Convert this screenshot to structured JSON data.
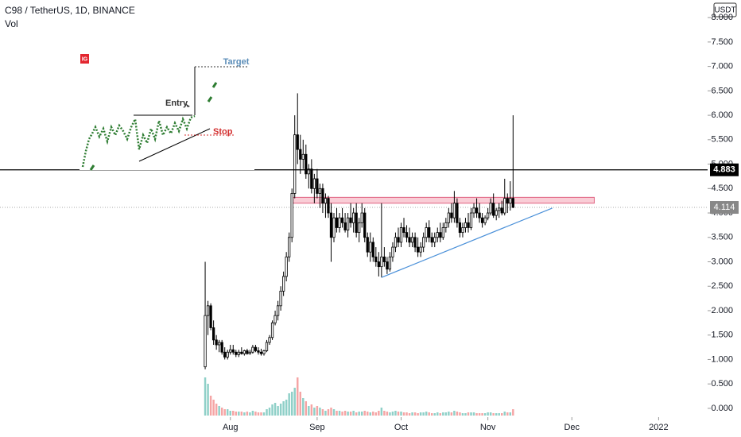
{
  "chart_data": {
    "type": "candlestick",
    "title": "C98 / TetherUS, 1D, BINANCE",
    "volume_title": "Vol",
    "unit": "USDT",
    "x": [
      0,
      1,
      2,
      3,
      4,
      5,
      6,
      7,
      8,
      9,
      10,
      11,
      12,
      13,
      14,
      15,
      16,
      17,
      18,
      19,
      20,
      21,
      22,
      23,
      24,
      25,
      26,
      27,
      28,
      29,
      30,
      31,
      32,
      33,
      34,
      35,
      36,
      37,
      38,
      39,
      40,
      41,
      42,
      43,
      44,
      45,
      46,
      47,
      48,
      49,
      50,
      51,
      52,
      53,
      54,
      55,
      56,
      57,
      58,
      59,
      60,
      61,
      62,
      63,
      64,
      65,
      66,
      67,
      68,
      69,
      70,
      71,
      72,
      73,
      74,
      75,
      76,
      77,
      78,
      79,
      80,
      81,
      82,
      83,
      84,
      85,
      86,
      87,
      88,
      89,
      90,
      91,
      92,
      93,
      94,
      95,
      96,
      97,
      98,
      99,
      100,
      101,
      102,
      103,
      104,
      105,
      106,
      107,
      108,
      109,
      110
    ],
    "ohlc": [
      [
        0.85,
        3.0,
        0.8,
        1.9
      ],
      [
        1.9,
        2.2,
        1.5,
        2.1
      ],
      [
        2.1,
        2.15,
        1.6,
        1.65
      ],
      [
        1.65,
        1.8,
        1.3,
        1.4
      ],
      [
        1.4,
        1.5,
        1.2,
        1.3
      ],
      [
        1.3,
        1.4,
        1.15,
        1.35
      ],
      [
        1.35,
        1.4,
        1.1,
        1.15
      ],
      [
        1.15,
        1.25,
        1.0,
        1.05
      ],
      [
        1.05,
        1.2,
        1.0,
        1.15
      ],
      [
        1.15,
        1.3,
        1.1,
        1.2
      ],
      [
        1.2,
        1.3,
        1.1,
        1.15
      ],
      [
        1.15,
        1.2,
        1.05,
        1.1
      ],
      [
        1.1,
        1.2,
        1.05,
        1.15
      ],
      [
        1.15,
        1.25,
        1.1,
        1.12
      ],
      [
        1.12,
        1.2,
        1.08,
        1.18
      ],
      [
        1.18,
        1.22,
        1.1,
        1.12
      ],
      [
        1.12,
        1.2,
        1.1,
        1.15
      ],
      [
        1.15,
        1.3,
        1.12,
        1.25
      ],
      [
        1.25,
        1.3,
        1.15,
        1.18
      ],
      [
        1.18,
        1.25,
        1.1,
        1.15
      ],
      [
        1.15,
        1.22,
        1.08,
        1.12
      ],
      [
        1.12,
        1.2,
        1.08,
        1.18
      ],
      [
        1.18,
        1.4,
        1.15,
        1.35
      ],
      [
        1.35,
        1.5,
        1.3,
        1.45
      ],
      [
        1.45,
        1.8,
        1.4,
        1.75
      ],
      [
        1.75,
        2.0,
        1.7,
        1.9
      ],
      [
        1.9,
        2.2,
        1.8,
        2.1
      ],
      [
        2.1,
        2.5,
        2.0,
        2.4
      ],
      [
        2.4,
        2.8,
        2.3,
        2.7
      ],
      [
        2.7,
        3.2,
        2.6,
        3.1
      ],
      [
        3.1,
        3.6,
        3.0,
        3.5
      ],
      [
        3.5,
        4.5,
        3.4,
        4.4
      ],
      [
        4.4,
        6.0,
        4.3,
        5.6
      ],
      [
        5.6,
        6.45,
        5.0,
        5.3
      ],
      [
        5.3,
        5.6,
        4.8,
        5.1
      ],
      [
        5.1,
        5.5,
        4.9,
        5.2
      ],
      [
        5.2,
        5.4,
        4.7,
        4.8
      ],
      [
        4.8,
        5.0,
        4.5,
        4.9
      ],
      [
        4.9,
        5.1,
        4.4,
        4.5
      ],
      [
        4.5,
        4.8,
        4.2,
        4.7
      ],
      [
        4.7,
        4.9,
        4.3,
        4.4
      ],
      [
        4.4,
        4.6,
        4.1,
        4.5
      ],
      [
        4.5,
        4.6,
        4.0,
        4.2
      ],
      [
        4.2,
        4.4,
        3.9,
        4.3
      ],
      [
        4.3,
        4.35,
        3.9,
        4.0
      ],
      [
        4.0,
        4.2,
        3.0,
        3.5
      ],
      [
        3.5,
        4.0,
        3.4,
        3.9
      ],
      [
        3.9,
        4.1,
        3.6,
        3.7
      ],
      [
        3.7,
        4.0,
        3.6,
        3.9
      ],
      [
        3.9,
        4.1,
        3.7,
        3.8
      ],
      [
        3.8,
        4.0,
        3.6,
        3.65
      ],
      [
        3.65,
        4.0,
        3.5,
        3.9
      ],
      [
        3.9,
        4.2,
        3.7,
        3.8
      ],
      [
        3.8,
        4.1,
        3.6,
        4.0
      ],
      [
        4.0,
        4.2,
        3.5,
        3.6
      ],
      [
        3.6,
        3.9,
        3.4,
        3.8
      ],
      [
        3.8,
        4.2,
        3.7,
        4.0
      ],
      [
        4.0,
        4.1,
        3.4,
        3.5
      ],
      [
        3.5,
        3.6,
        3.1,
        3.2
      ],
      [
        3.2,
        3.6,
        3.0,
        3.4
      ],
      [
        3.4,
        3.5,
        3.0,
        3.1
      ],
      [
        3.1,
        3.3,
        2.9,
        3.0
      ],
      [
        3.0,
        3.2,
        2.7,
        2.9
      ],
      [
        2.9,
        4.2,
        2.68,
        3.1
      ],
      [
        3.1,
        3.3,
        2.9,
        3.0
      ],
      [
        3.0,
        3.1,
        2.75,
        2.85
      ],
      [
        2.85,
        3.2,
        2.8,
        3.1
      ],
      [
        3.1,
        3.4,
        3.0,
        3.3
      ],
      [
        3.3,
        3.6,
        3.2,
        3.5
      ],
      [
        3.5,
        3.7,
        3.3,
        3.4
      ],
      [
        3.4,
        3.8,
        3.3,
        3.7
      ],
      [
        3.7,
        3.9,
        3.5,
        3.6
      ],
      [
        3.6,
        3.75,
        3.4,
        3.5
      ],
      [
        3.5,
        3.7,
        3.3,
        3.4
      ],
      [
        3.4,
        3.6,
        3.3,
        3.5
      ],
      [
        3.5,
        3.6,
        3.2,
        3.3
      ],
      [
        3.3,
        3.5,
        3.1,
        3.2
      ],
      [
        3.2,
        3.4,
        3.1,
        3.3
      ],
      [
        3.3,
        3.6,
        3.2,
        3.5
      ],
      [
        3.5,
        3.8,
        3.4,
        3.7
      ],
      [
        3.7,
        3.85,
        3.4,
        3.5
      ],
      [
        3.5,
        3.6,
        3.3,
        3.4
      ],
      [
        3.4,
        3.6,
        3.3,
        3.5
      ],
      [
        3.5,
        3.7,
        3.4,
        3.6
      ],
      [
        3.6,
        3.8,
        3.4,
        3.5
      ],
      [
        3.5,
        3.8,
        3.45,
        3.7
      ],
      [
        3.7,
        3.9,
        3.6,
        3.8
      ],
      [
        3.8,
        4.1,
        3.7,
        4.0
      ],
      [
        4.0,
        4.2,
        3.8,
        3.9
      ],
      [
        3.9,
        4.45,
        3.8,
        4.2
      ],
      [
        4.2,
        4.3,
        3.7,
        3.8
      ],
      [
        3.8,
        3.9,
        3.5,
        3.6
      ],
      [
        3.6,
        3.8,
        3.5,
        3.7
      ],
      [
        3.7,
        3.9,
        3.6,
        3.8
      ],
      [
        3.8,
        4.0,
        3.6,
        3.7
      ],
      [
        3.7,
        4.1,
        3.65,
        4.0
      ],
      [
        4.0,
        4.2,
        3.9,
        4.1
      ],
      [
        4.1,
        4.3,
        3.9,
        4.0
      ],
      [
        4.0,
        4.2,
        3.8,
        3.9
      ],
      [
        3.9,
        4.0,
        3.7,
        3.8
      ],
      [
        3.8,
        3.95,
        3.75,
        3.9
      ],
      [
        3.9,
        4.1,
        3.85,
        4.0
      ],
      [
        4.0,
        4.3,
        3.95,
        4.2
      ],
      [
        4.2,
        4.4,
        3.9,
        3.95
      ],
      [
        3.95,
        4.1,
        3.85,
        4.05
      ],
      [
        4.05,
        4.2,
        3.9,
        4.1
      ],
      [
        4.1,
        4.25,
        3.95,
        4.0
      ],
      [
        4.0,
        4.7,
        3.95,
        4.3
      ],
      [
        4.3,
        4.4,
        4.0,
        4.2
      ],
      [
        4.2,
        4.65,
        4.05,
        4.3
      ],
      [
        4.3,
        6.0,
        4.1,
        4.114
      ]
    ],
    "volume": [
      48,
      40,
      25,
      20,
      15,
      12,
      10,
      8,
      8,
      6,
      6,
      5,
      5,
      5,
      4,
      5,
      4,
      6,
      5,
      4,
      4,
      4,
      8,
      10,
      14,
      16,
      12,
      15,
      18,
      20,
      28,
      30,
      35,
      48,
      30,
      22,
      18,
      12,
      14,
      10,
      12,
      10,
      8,
      6,
      8,
      10,
      8,
      6,
      6,
      5,
      6,
      5,
      5,
      6,
      4,
      5,
      5,
      6,
      5,
      4,
      5,
      4,
      6,
      10,
      6,
      5,
      4,
      5,
      6,
      5,
      5,
      4,
      4,
      3,
      4,
      4,
      3,
      4,
      4,
      5,
      4,
      3,
      3,
      4,
      3,
      4,
      4,
      5,
      4,
      6,
      5,
      4,
      3,
      3,
      4,
      4,
      4,
      3,
      3,
      3,
      3,
      4,
      4,
      3,
      3,
      3,
      3,
      5,
      4,
      4,
      8
    ],
    "volume_lim": [
      0,
      100
    ],
    "ylim": [
      -0.18,
      8.36
    ],
    "yticks": [
      {
        "value": 0,
        "label": "0.000"
      },
      {
        "value": 0.5,
        "label": "0.500"
      },
      {
        "value": 1,
        "label": "1.000"
      },
      {
        "value": 1.5,
        "label": "1.500"
      },
      {
        "value": 2,
        "label": "2.000"
      },
      {
        "value": 2.5,
        "label": "2.500"
      },
      {
        "value": 3,
        "label": "3.000"
      },
      {
        "value": 3.5,
        "label": "3.500"
      },
      {
        "value": 4,
        "label": "4.000"
      },
      {
        "value": 4.5,
        "label": "4.500"
      },
      {
        "value": 5,
        "label": "5.000"
      },
      {
        "value": 5.5,
        "label": "5.500"
      },
      {
        "value": 6,
        "label": "6.000"
      },
      {
        "value": 6.5,
        "label": "6.500"
      },
      {
        "value": 7,
        "label": "7.000"
      },
      {
        "value": 7.5,
        "label": "7.500"
      },
      {
        "value": 8,
        "label": "8.000"
      }
    ],
    "xlim": [
      -73.3,
      179.5
    ],
    "xticks": [
      {
        "value": 9,
        "label": "Aug"
      },
      {
        "value": 40,
        "label": "Sep"
      },
      {
        "value": 70,
        "label": "Oct"
      },
      {
        "value": 101,
        "label": "Nov"
      },
      {
        "value": 131,
        "label": "Dec"
      },
      {
        "value": 162,
        "label": "2022"
      }
    ],
    "up_color": "#ffffff",
    "down_color": "#000000",
    "volume_up_color": "#8fd0c8",
    "volume_down_color": "#f5a5a5",
    "horizontal_line": {
      "value": 4.883,
      "label": "4.883"
    },
    "last_price": {
      "value": 4.114,
      "label": "4.114"
    },
    "zone": {
      "x": [
        31,
        139
      ],
      "y": [
        4.2,
        4.32
      ],
      "color": "#f9cdd6"
    },
    "trend_line": {
      "x": [
        63,
        124
      ],
      "y": [
        2.68,
        4.1
      ],
      "color": "#4a90d9"
    },
    "annotations": {
      "badge": "IG",
      "target": "Target",
      "entry": "Entry",
      "stop": "Stop"
    }
  }
}
